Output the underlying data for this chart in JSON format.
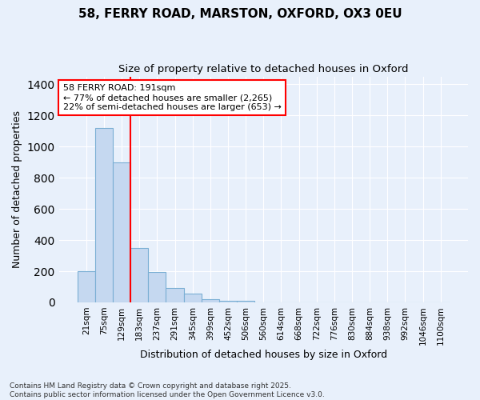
{
  "title_line1": "58, FERRY ROAD, MARSTON, OXFORD, OX3 0EU",
  "title_line2": "Size of property relative to detached houses in Oxford",
  "xlabel": "Distribution of detached houses by size in Oxford",
  "ylabel": "Number of detached properties",
  "categories": [
    "21sqm",
    "75sqm",
    "129sqm",
    "183sqm",
    "237sqm",
    "291sqm",
    "345sqm",
    "399sqm",
    "452sqm",
    "506sqm",
    "560sqm",
    "614sqm",
    "668sqm",
    "722sqm",
    "776sqm",
    "830sqm",
    "884sqm",
    "938sqm",
    "992sqm",
    "1046sqm",
    "1100sqm"
  ],
  "values": [
    200,
    1120,
    900,
    350,
    195,
    90,
    57,
    20,
    12,
    10,
    0,
    0,
    0,
    0,
    0,
    0,
    0,
    0,
    0,
    0,
    0
  ],
  "bar_color": "#c5d8f0",
  "bar_edge_color": "#7bafd4",
  "vline_x_index": 3,
  "vline_color": "red",
  "annotation_text": "58 FERRY ROAD: 191sqm\n← 77% of detached houses are smaller (2,265)\n22% of semi-detached houses are larger (653) →",
  "annotation_box_color": "white",
  "annotation_box_edge": "red",
  "ylim": [
    0,
    1450
  ],
  "bg_color": "#e8f0fb",
  "grid_color": "#ffffff",
  "footer_line1": "Contains HM Land Registry data © Crown copyright and database right 2025.",
  "footer_line2": "Contains public sector information licensed under the Open Government Licence v3.0."
}
